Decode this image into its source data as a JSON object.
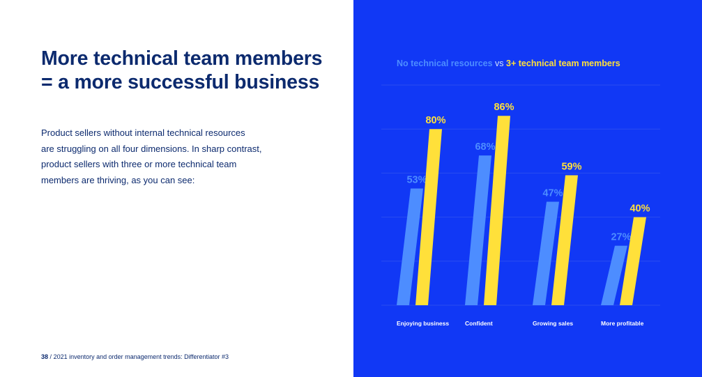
{
  "headline": {
    "line1": "More technical team members",
    "line2": "= a more successful business"
  },
  "body": {
    "lines": [
      "Product sellers without internal technical resources",
      "are struggling on all four dimensions. In sharp contrast,",
      "product sellers with three or more technical team",
      "members are thriving, as you can see:"
    ]
  },
  "footer": {
    "page": "38",
    "separator": "/",
    "text": "2021 inventory and order management trends: Differentiator #3"
  },
  "chart_subtitle": {
    "series1": "No technical resources",
    "vs": "vs",
    "series2": "3+ technical team members"
  },
  "colors": {
    "panel_bg": "#1138f5",
    "series1": "#4d8dff",
    "series2": "#ffe03a",
    "heading": "#0c2a6e"
  },
  "chart_data": {
    "type": "bar",
    "title": "",
    "xlabel": "",
    "ylabel": "",
    "ylim": [
      0,
      100
    ],
    "grid": true,
    "legend": "top",
    "categories": [
      "Enjoying business",
      "Confident",
      "Growing sales",
      "More profitable"
    ],
    "series": [
      {
        "name": "No technical resources",
        "values": [
          53,
          68,
          47,
          27
        ],
        "labels": [
          "53%",
          "68%",
          "47%",
          "27%"
        ]
      },
      {
        "name": "3+ technical team members",
        "values": [
          80,
          86,
          59,
          40
        ],
        "labels": [
          "80%",
          "86%",
          "59%",
          "40%"
        ]
      }
    ]
  }
}
